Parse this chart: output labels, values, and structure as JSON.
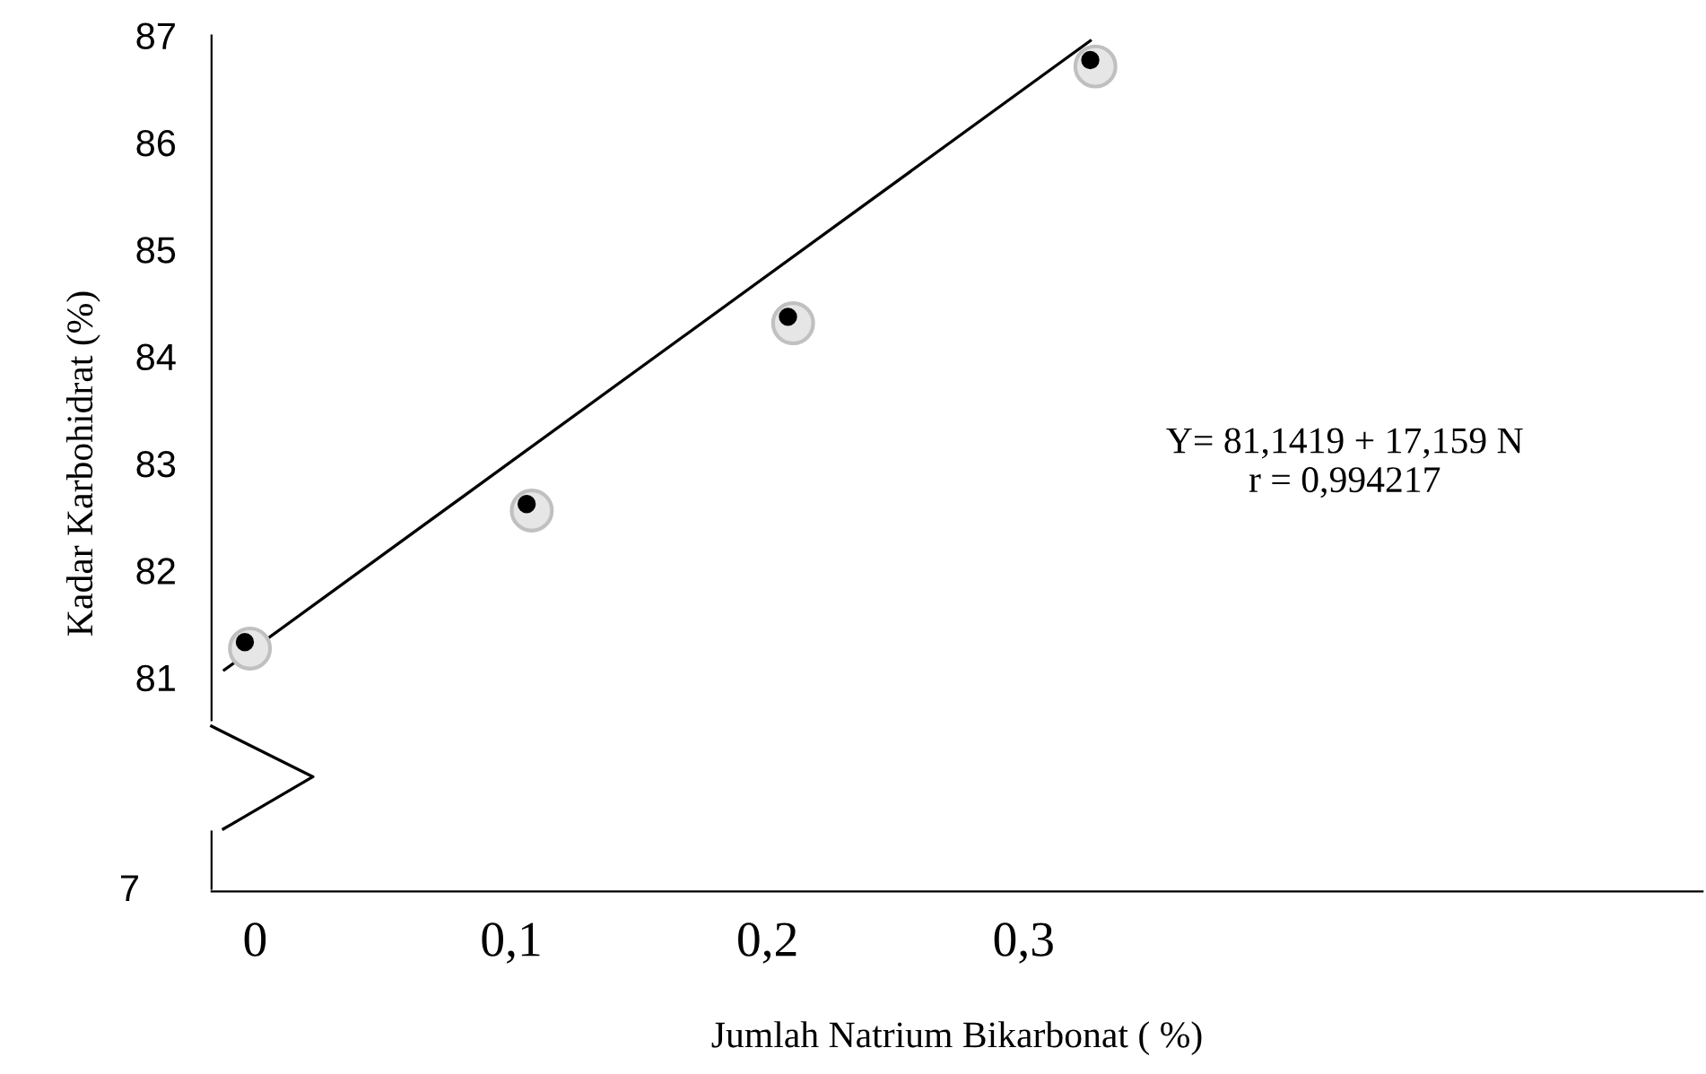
{
  "chart_data": {
    "type": "scatter",
    "xlabel": "Jumlah Natrium Bikarbonat ( %)",
    "ylabel": "Kadar Karbohidrat (%)",
    "series": [
      {
        "color": "#000000",
        "marker": "circle",
        "x": [
          -0.004,
          0.106,
          0.208,
          0.326
        ],
        "values": [
          81.33,
          82.62,
          84.37,
          86.77
        ]
      },
      {
        "type": "line",
        "color": "#000000",
        "x": [
          -0.012,
          0.326
        ],
        "values": [
          81.07,
          86.95
        ]
      }
    ],
    "xlim": [
      -0.017,
      0.565
    ],
    "xticks": [
      0,
      {
        "value": 0.1,
        "label": "0,1"
      },
      {
        "value": 0.2,
        "label": "0,2"
      },
      {
        "value": 0.3,
        "label": "0,3"
      }
    ],
    "ylim": [
      79,
      87
    ],
    "yticks": [
      {
        "value": 79,
        "label": null
      },
      81,
      82,
      83,
      84,
      85,
      86,
      87
    ],
    "grid": false,
    "legend": false,
    "annotations": [
      "Y= 81,1419 + 17,159 N\nr = 0,994217",
      "7"
    ]
  }
}
